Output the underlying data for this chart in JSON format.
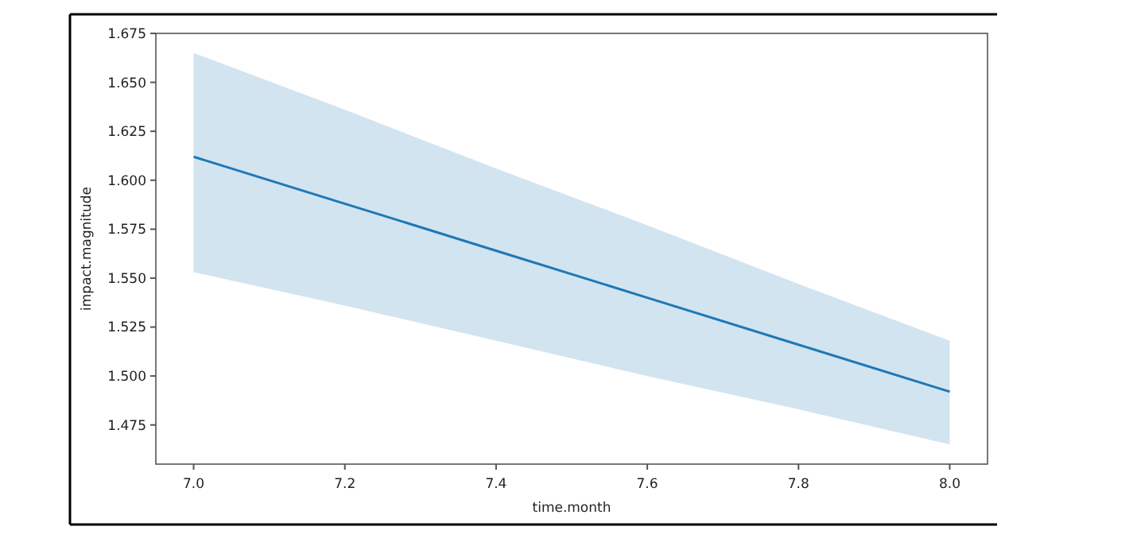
{
  "chart_data": {
    "type": "line",
    "xlabel": "time.month",
    "ylabel": "impact.magnitude",
    "x": [
      7.0,
      7.2,
      7.4,
      7.6,
      7.8,
      8.0
    ],
    "series": [
      {
        "color": "#1f77b4",
        "values": [
          1.612,
          1.588,
          1.564,
          1.54,
          1.516,
          1.492
        ],
        "lower": [
          1.553,
          1.536,
          1.518,
          1.5,
          1.483,
          1.465
        ],
        "upper": [
          1.665,
          1.636,
          1.606,
          1.577,
          1.547,
          1.518
        ]
      }
    ],
    "xlim": [
      6.95,
      8.05
    ],
    "xticks": [
      {
        "value": 7.0,
        "label": "7.0"
      },
      {
        "value": 7.2,
        "label": "7.2"
      },
      {
        "value": 7.4,
        "label": "7.4"
      },
      {
        "value": 7.6,
        "label": "7.6"
      },
      {
        "value": 7.8,
        "label": "7.8"
      },
      {
        "value": 8.0,
        "label": "8.0"
      }
    ],
    "ylim": [
      1.455,
      1.675
    ],
    "yticks": [
      {
        "value": 1.475,
        "label": "1.475"
      },
      {
        "value": 1.5,
        "label": "1.500"
      },
      {
        "value": 1.525,
        "label": "1.525"
      },
      {
        "value": 1.55,
        "label": "1.550"
      },
      {
        "value": 1.575,
        "label": "1.575"
      },
      {
        "value": 1.6,
        "label": "1.600"
      },
      {
        "value": 1.625,
        "label": "1.625"
      },
      {
        "value": 1.65,
        "label": "1.650"
      },
      {
        "value": 1.675,
        "label": "1.675"
      }
    ],
    "grid": false
  }
}
